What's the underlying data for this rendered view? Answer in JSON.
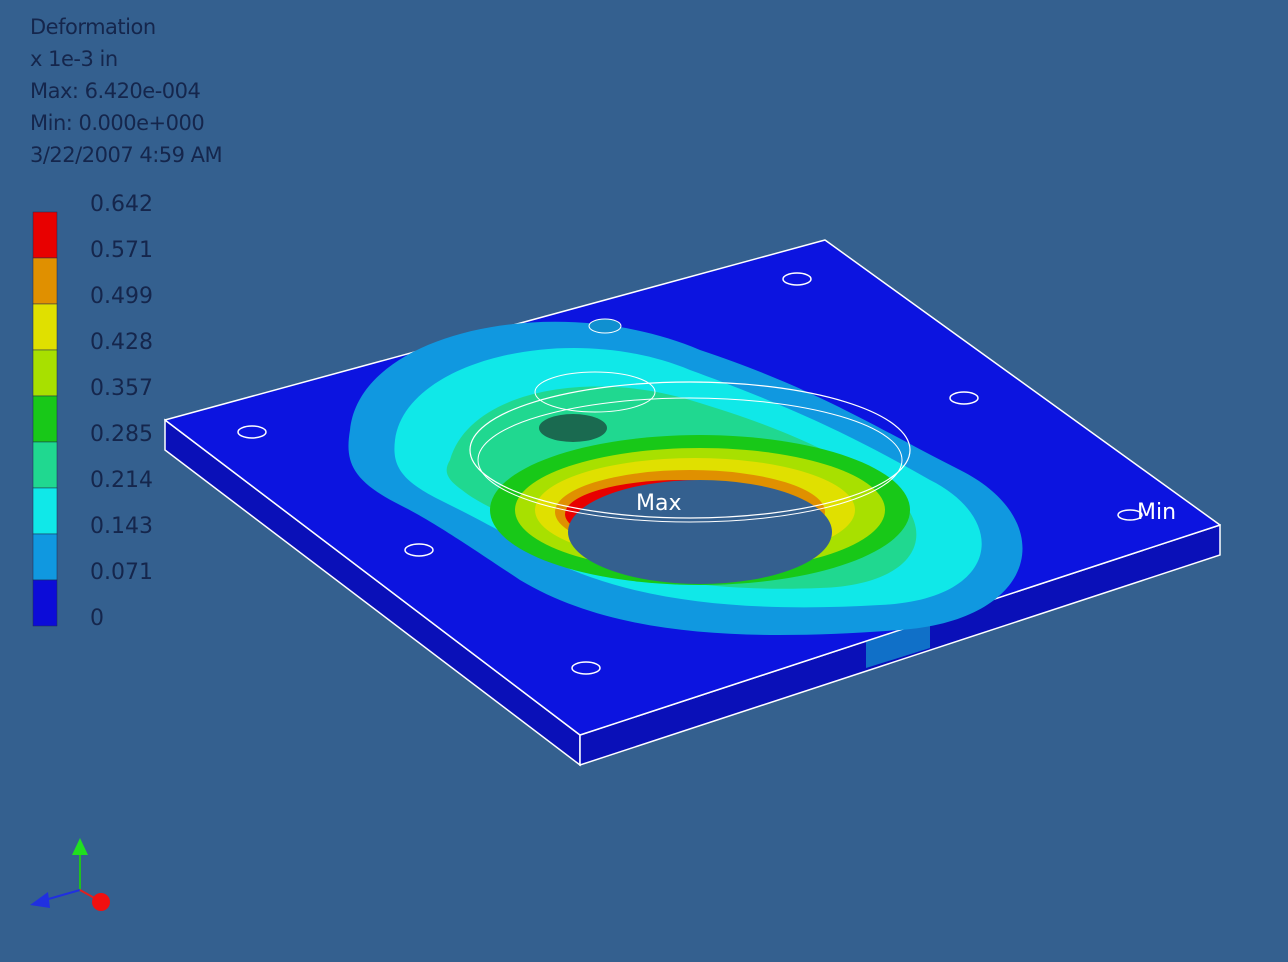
{
  "header": {
    "title": "Deformation",
    "units": "x 1e-3 in",
    "max": "Max: 6.420e-004",
    "min": "Min: 0.000e+000",
    "date": "3/22/2007 4:59 AM"
  },
  "legend": {
    "labels": [
      "0.642",
      "0.571",
      "0.499",
      "0.428",
      "0.357",
      "0.285",
      "0.214",
      "0.143",
      "0.071",
      "0"
    ],
    "colors": [
      "#e80000",
      "#e09000",
      "#e0e000",
      "#a8e000",
      "#18c818",
      "#20d890",
      "#10e8e8",
      "#1098e0",
      "#0c0cd8"
    ]
  },
  "model": {
    "max_label": "Max",
    "min_label": "Min"
  }
}
